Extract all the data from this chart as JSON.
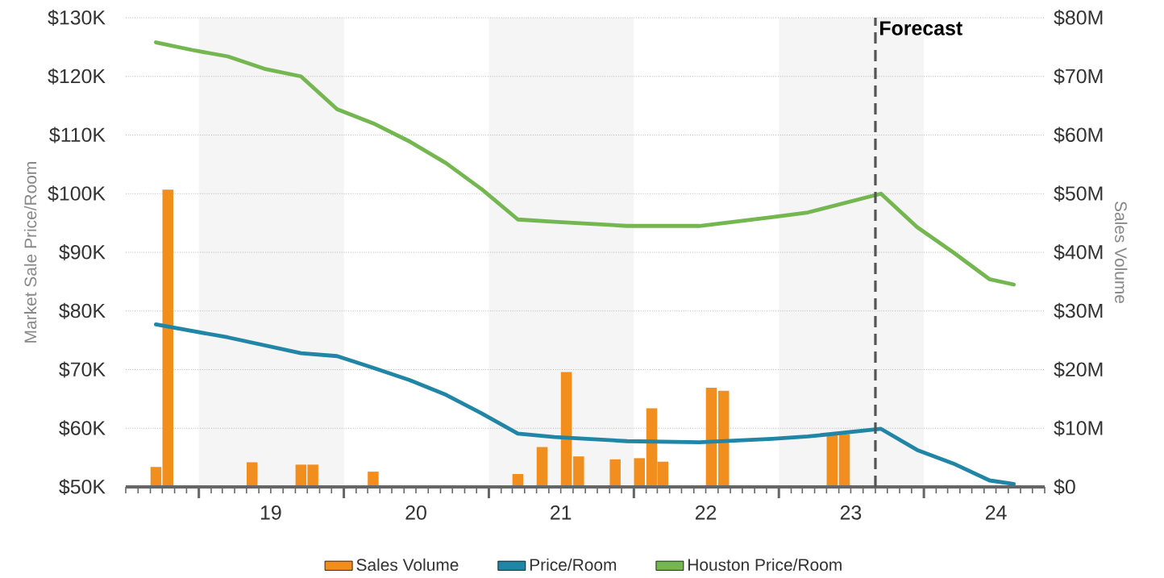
{
  "chart_data": {
    "type": "line",
    "ylabel": "Market Sale Price/Room",
    "y2label": "Sales Volume",
    "xlim": [
      "2018-07-01",
      "2024-11-01"
    ],
    "xticks": [
      {
        "value": "2019-01-01",
        "label": null
      },
      {
        "value": "2020-01-01",
        "label": null
      },
      {
        "value": "2021-01-01",
        "label": null
      },
      {
        "value": "2022-01-01",
        "label": null
      },
      {
        "value": "2023-01-01",
        "label": null
      },
      {
        "value": "2024-01-01",
        "label": null
      },
      {
        "value": "2019-07-01",
        "label": "19"
      },
      {
        "value": "2020-07-01",
        "label": "20"
      },
      {
        "value": "2021-07-01",
        "label": "21"
      },
      {
        "value": "2022-07-01",
        "label": "22"
      },
      {
        "value": "2023-07-01",
        "label": "23"
      },
      {
        "value": "2024-07-01",
        "label": "24"
      }
    ],
    "ylim": [
      50,
      130
    ],
    "yticks": [
      {
        "value": 50,
        "label": "$50K"
      },
      {
        "value": 60,
        "label": "$60K"
      },
      {
        "value": 70,
        "label": "$70K"
      },
      {
        "value": 80,
        "label": "$80K"
      },
      {
        "value": 90,
        "label": "$90K"
      },
      {
        "value": 100,
        "label": "$100K"
      },
      {
        "value": 110,
        "label": "$110K"
      },
      {
        "value": 120,
        "label": "$120K"
      },
      {
        "value": 130,
        "label": "$130K"
      }
    ],
    "y2lim": [
      0,
      80
    ],
    "y2ticks": [
      {
        "value": 0,
        "label": "$0"
      },
      {
        "value": 10,
        "label": "$10M"
      },
      {
        "value": 20,
        "label": "$20M"
      },
      {
        "value": 30,
        "label": "$30M"
      },
      {
        "value": 40,
        "label": "$40M"
      },
      {
        "value": 50,
        "label": "$50M"
      },
      {
        "value": 60,
        "label": "$60M"
      },
      {
        "value": 70,
        "label": "$70M"
      },
      {
        "value": 80,
        "label": "$80M"
      }
    ],
    "grid": "y",
    "legend": "bottom",
    "bands": [
      {
        "axis": "x",
        "from": "2019-01-01",
        "to": "2020-01-01",
        "color": "#f5f5f5"
      },
      {
        "axis": "x",
        "from": "2021-01-01",
        "to": "2022-01-01",
        "color": "#f5f5f5"
      },
      {
        "axis": "x",
        "from": "2023-01-01",
        "to": "2024-01-01",
        "color": "#f5f5f5"
      }
    ],
    "ref_lines": [
      {
        "axis": "x",
        "value": "2023-09-01",
        "label": "Forecast",
        "color": "#555555",
        "line_style": "dashed"
      }
    ],
    "series": [
      {
        "name": "Sales Volume",
        "type": "bar",
        "axis": "y2",
        "color": "#f28e1e",
        "x": [
          "2018-09-15",
          "2018-10-15",
          "2019-05-15",
          "2019-09-15",
          "2019-10-15",
          "2020-03-15",
          "2021-03-15",
          "2021-05-15",
          "2021-07-15",
          "2021-08-15",
          "2021-11-15",
          "2022-01-15",
          "2022-02-15",
          "2022-03-15",
          "2022-07-15",
          "2022-08-15",
          "2023-05-15",
          "2023-06-15"
        ],
        "values": [
          3.4,
          50.7,
          4.2,
          3.8,
          3.8,
          2.6,
          2.2,
          6.8,
          19.6,
          5.2,
          4.7,
          4.9,
          13.4,
          4.3,
          16.9,
          16.4,
          9,
          9
        ]
      },
      {
        "name": "Price/Room",
        "color": "#2185a6",
        "x": [
          "2018-09-15",
          "2019-03-15",
          "2019-09-15",
          "2019-12-15",
          "2020-03-15",
          "2020-06-15",
          "2020-09-15",
          "2020-12-15",
          "2021-03-15",
          "2021-06-15",
          "2021-12-15",
          "2022-06-15",
          "2022-12-15",
          "2023-03-15",
          "2023-09-15",
          "2023-12-15",
          "2024-03-15",
          "2024-06-15",
          "2024-08-15"
        ],
        "values": [
          77.7,
          75.5,
          72.8,
          72.3,
          70.3,
          68.2,
          65.7,
          62.5,
          59.1,
          58.5,
          57.8,
          57.6,
          58.2,
          58.6,
          59.9,
          56.3,
          54.0,
          51.1,
          50.5
        ]
      },
      {
        "name": "Houston Price/Room",
        "color": "#74b650",
        "x": [
          "2018-09-15",
          "2018-12-15",
          "2019-03-15",
          "2019-06-15",
          "2019-09-15",
          "2019-12-15",
          "2020-03-15",
          "2020-06-15",
          "2020-09-15",
          "2020-12-15",
          "2021-03-15",
          "2021-06-15",
          "2021-12-15",
          "2022-06-15",
          "2022-12-15",
          "2023-03-15",
          "2023-09-15",
          "2023-12-15",
          "2024-03-15",
          "2024-06-15",
          "2024-08-15"
        ],
        "values": [
          125.8,
          124.5,
          123.4,
          121.3,
          120.0,
          114.4,
          112.0,
          108.9,
          105.2,
          100.7,
          95.6,
          95.2,
          94.5,
          94.5,
          96.0,
          96.8,
          100.0,
          94.3,
          90.0,
          85.4,
          84.5
        ]
      }
    ]
  }
}
